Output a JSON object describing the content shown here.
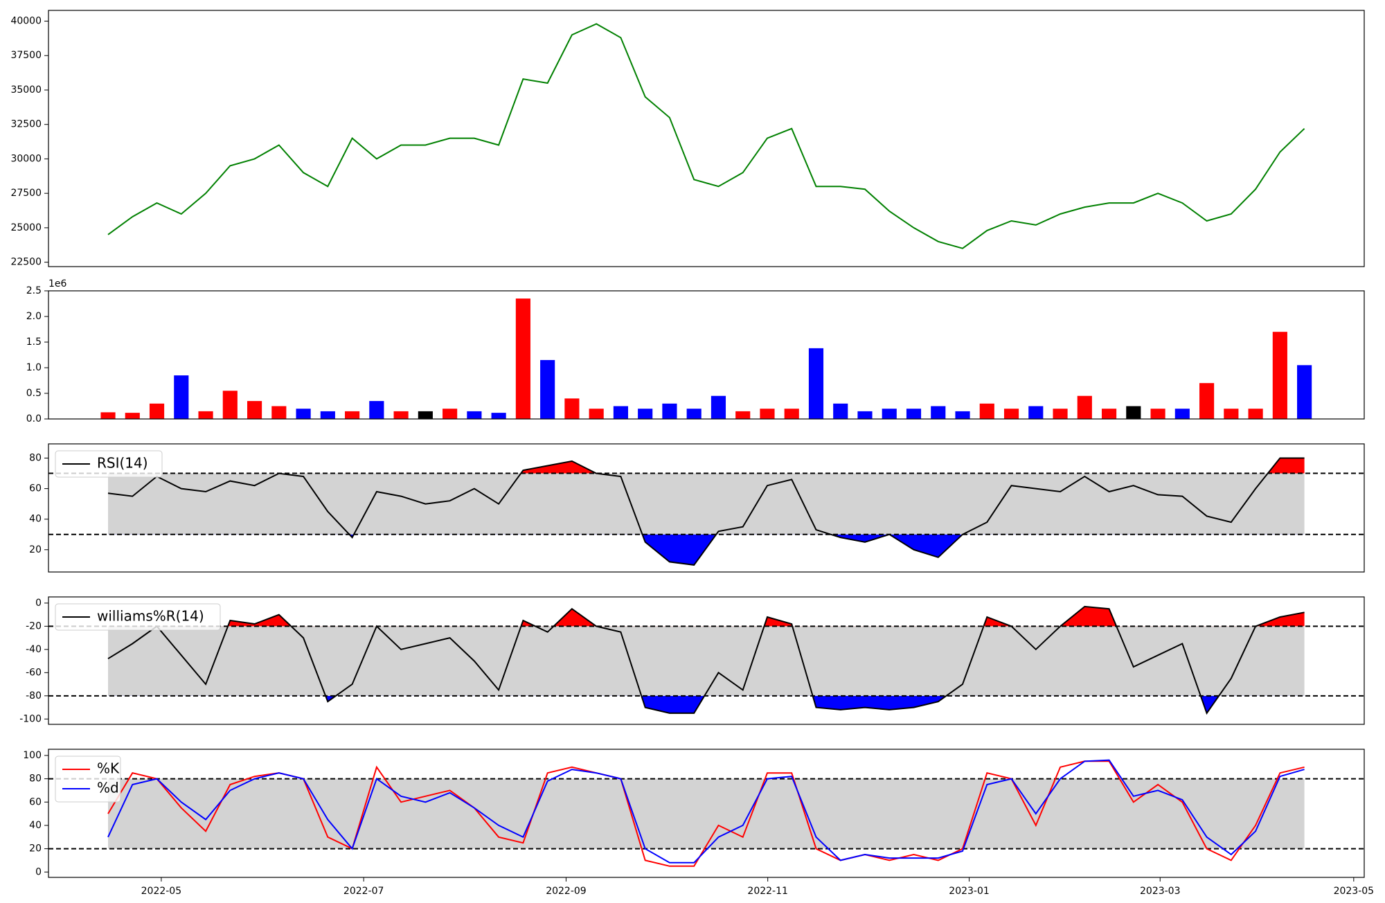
{
  "chart_data": [
    {
      "type": "line",
      "x": [
        0,
        1,
        2,
        3,
        4,
        5,
        6,
        7,
        8,
        9,
        10,
        11,
        12,
        13,
        14,
        15,
        16,
        17,
        18,
        19,
        20,
        21,
        22,
        23,
        24,
        25,
        26,
        27,
        28,
        29,
        30,
        31,
        32,
        33,
        34,
        35,
        36,
        37,
        38,
        39,
        40,
        41,
        42,
        43,
        44,
        45,
        46,
        47,
        48,
        49
      ],
      "xlim": [
        -2.44,
        51.45
      ],
      "ylim": [
        22180,
        40780
      ],
      "yticks": [
        22500,
        25000,
        27500,
        30000,
        32500,
        35000,
        37500,
        40000
      ],
      "series": [
        {
          "color": "#008000",
          "values": [
            24500,
            25800,
            26800,
            26000,
            27500,
            29500,
            30000,
            31000,
            29000,
            28000,
            31500,
            30000,
            31000,
            31000,
            31500,
            31500,
            31000,
            35800,
            35500,
            39000,
            39800,
            38800,
            34500,
            33000,
            28500,
            28000,
            29000,
            31500,
            32200,
            28000,
            28000,
            27800,
            26200,
            25000,
            24000,
            23500,
            24800,
            25500,
            25200,
            26000,
            26500,
            26800,
            26800,
            27500,
            26800,
            25500,
            26000,
            27800,
            30500,
            32200
          ]
        }
      ]
    },
    {
      "type": "bar",
      "x": [
        0,
        1,
        2,
        3,
        4,
        5,
        6,
        7,
        8,
        9,
        10,
        11,
        12,
        13,
        14,
        15,
        16,
        17,
        18,
        19,
        20,
        21,
        22,
        23,
        24,
        25,
        26,
        27,
        28,
        29,
        30,
        31,
        32,
        33,
        34,
        35,
        36,
        37,
        38,
        39,
        40,
        41,
        42,
        43,
        44,
        45,
        46,
        47,
        48,
        49
      ],
      "xlim": [
        -2.44,
        51.45
      ],
      "offset_label": "1e6",
      "ylim": [
        0,
        2.5
      ],
      "yticks": [
        {
          "value": 0,
          "label": "0.0"
        },
        0.5,
        {
          "value": 1,
          "label": "1.0"
        },
        1.5,
        {
          "value": 2,
          "label": "2.0"
        },
        2.5
      ],
      "values": [
        0.13,
        0.12,
        0.3,
        0.85,
        0.15,
        0.55,
        0.35,
        0.25,
        0.2,
        0.15,
        0.15,
        0.35,
        0.15,
        0.15,
        0.2,
        0.15,
        0.12,
        2.35,
        1.15,
        0.4,
        0.2,
        0.25,
        0.2,
        0.3,
        0.2,
        0.45,
        0.15,
        0.2,
        0.2,
        1.38,
        0.3,
        0.15,
        0.2,
        0.2,
        0.25,
        0.15,
        0.3,
        0.2,
        0.25,
        0.2,
        0.45,
        0.2,
        0.25,
        0.2,
        0.2,
        0.7,
        0.2,
        0.2,
        1.7,
        1.05
      ],
      "colors": [
        "#ff0000",
        "#ff0000",
        "#ff0000",
        "#0000ff",
        "#ff0000",
        "#ff0000",
        "#ff0000",
        "#ff0000",
        "#0000ff",
        "#0000ff",
        "#ff0000",
        "#0000ff",
        "#ff0000",
        "#000000",
        "#ff0000",
        "#0000ff",
        "#0000ff",
        "#ff0000",
        "#0000ff",
        "#ff0000",
        "#ff0000",
        "#0000ff",
        "#0000ff",
        "#0000ff",
        "#0000ff",
        "#0000ff",
        "#ff0000",
        "#ff0000",
        "#ff0000",
        "#0000ff",
        "#0000ff",
        "#0000ff",
        "#0000ff",
        "#0000ff",
        "#0000ff",
        "#0000ff",
        "#ff0000",
        "#ff0000",
        "#0000ff",
        "#ff0000",
        "#ff0000",
        "#ff0000",
        "#000000",
        "#ff0000",
        "#0000ff",
        "#ff0000",
        "#ff0000",
        "#ff0000",
        "#ff0000",
        "#0000ff"
      ]
    },
    {
      "type": "oscillator",
      "x": [
        0,
        1,
        2,
        3,
        4,
        5,
        6,
        7,
        8,
        9,
        10,
        11,
        12,
        13,
        14,
        15,
        16,
        17,
        18,
        19,
        20,
        21,
        22,
        23,
        24,
        25,
        26,
        27,
        28,
        29,
        30,
        31,
        32,
        33,
        34,
        35,
        36,
        37,
        38,
        39,
        40,
        41,
        42,
        43,
        44,
        45,
        46,
        47,
        48,
        49
      ],
      "xlim": [
        -2.44,
        51.45
      ],
      "ylim": [
        5.4,
        89.3
      ],
      "yticks": [
        20,
        40,
        60,
        80
      ],
      "thresholds": [
        30,
        70
      ],
      "band_color": "#d3d3d3",
      "over_color": "#ff0000",
      "under_color": "#0000ff",
      "legend": "upper left",
      "series": [
        {
          "name": "RSI(14)",
          "color": "#000000",
          "values": [
            57,
            55,
            68,
            60,
            58,
            65,
            62,
            70,
            68,
            45,
            28,
            58,
            55,
            50,
            52,
            60,
            50,
            72,
            75,
            78,
            70,
            68,
            25,
            12,
            10,
            32,
            35,
            62,
            66,
            33,
            28,
            25,
            30,
            20,
            15,
            30,
            38,
            62,
            60,
            58,
            68,
            58,
            62,
            56,
            55,
            42,
            38,
            60,
            80,
            80
          ]
        }
      ]
    },
    {
      "type": "oscillator",
      "x": [
        0,
        1,
        2,
        3,
        4,
        5,
        6,
        7,
        8,
        9,
        10,
        11,
        12,
        13,
        14,
        15,
        16,
        17,
        18,
        19,
        20,
        21,
        22,
        23,
        24,
        25,
        26,
        27,
        28,
        29,
        30,
        31,
        32,
        33,
        34,
        35,
        36,
        37,
        38,
        39,
        40,
        41,
        42,
        43,
        44,
        45,
        46,
        47,
        48,
        49
      ],
      "xlim": [
        -2.44,
        51.45
      ],
      "ylim": [
        -104.6,
        5.3
      ],
      "yticks": [
        -100,
        -80,
        -60,
        -40,
        -20,
        0
      ],
      "thresholds": [
        -80,
        -20
      ],
      "band_color": "#d3d3d3",
      "over_color": "#ff0000",
      "under_color": "#0000ff",
      "legend": "upper left",
      "series": [
        {
          "name": "williams%R(14)",
          "color": "#000000",
          "values": [
            -48,
            -35,
            -20,
            -45,
            -70,
            -15,
            -18,
            -10,
            -30,
            -85,
            -70,
            -20,
            -40,
            -35,
            -30,
            -50,
            -75,
            -15,
            -25,
            -5,
            -20,
            -25,
            -90,
            -95,
            -95,
            -60,
            -75,
            -12,
            -18,
            -90,
            -92,
            -90,
            -92,
            -90,
            -85,
            -70,
            -12,
            -20,
            -40,
            -20,
            -3,
            -5,
            -55,
            -45,
            -35,
            -95,
            -65,
            -20,
            -12,
            -8
          ]
        }
      ]
    },
    {
      "type": "oscillator",
      "x": [
        0,
        1,
        2,
        3,
        4,
        5,
        6,
        7,
        8,
        9,
        10,
        11,
        12,
        13,
        14,
        15,
        16,
        17,
        18,
        19,
        20,
        21,
        22,
        23,
        24,
        25,
        26,
        27,
        28,
        29,
        30,
        31,
        32,
        33,
        34,
        35,
        36,
        37,
        38,
        39,
        40,
        41,
        42,
        43,
        44,
        45,
        46,
        47,
        48,
        49
      ],
      "xlim": [
        -2.44,
        51.45
      ],
      "xticks": [
        {
          "value": 2.18,
          "label": "2022-05"
        },
        {
          "value": 10.47,
          "label": "2022-07"
        },
        {
          "value": 18.76,
          "label": "2022-09"
        },
        {
          "value": 27.02,
          "label": "2022-11"
        },
        {
          "value": 35.27,
          "label": "2023-01"
        },
        {
          "value": 43.09,
          "label": "2023-03"
        },
        {
          "value": 51.02,
          "label": "2023-05"
        }
      ],
      "ylim": [
        -4.6,
        105.3
      ],
      "yticks": [
        0,
        20,
        40,
        60,
        80,
        100
      ],
      "thresholds": [
        20,
        80
      ],
      "band_color": "#d3d3d3",
      "legend": "upper left",
      "series": [
        {
          "name": "%K",
          "color": "#ff0000",
          "values": [
            50,
            85,
            80,
            55,
            35,
            75,
            82,
            85,
            80,
            30,
            20,
            90,
            60,
            65,
            70,
            55,
            30,
            25,
            85,
            90,
            85,
            80,
            10,
            5,
            5,
            40,
            30,
            85,
            85,
            20,
            10,
            15,
            10,
            15,
            10,
            20,
            85,
            80,
            40,
            90,
            95,
            95,
            60,
            75,
            60,
            20,
            10,
            40,
            85,
            90
          ]
        },
        {
          "name": "%d",
          "color": "#0000ff",
          "values": [
            30,
            75,
            80,
            60,
            45,
            70,
            80,
            85,
            80,
            45,
            20,
            80,
            65,
            60,
            68,
            55,
            40,
            30,
            78,
            88,
            85,
            80,
            20,
            8,
            8,
            30,
            40,
            80,
            82,
            30,
            10,
            15,
            12,
            12,
            12,
            18,
            75,
            80,
            50,
            80,
            95,
            96,
            65,
            70,
            62,
            30,
            15,
            35,
            82,
            88
          ]
        }
      ]
    }
  ]
}
